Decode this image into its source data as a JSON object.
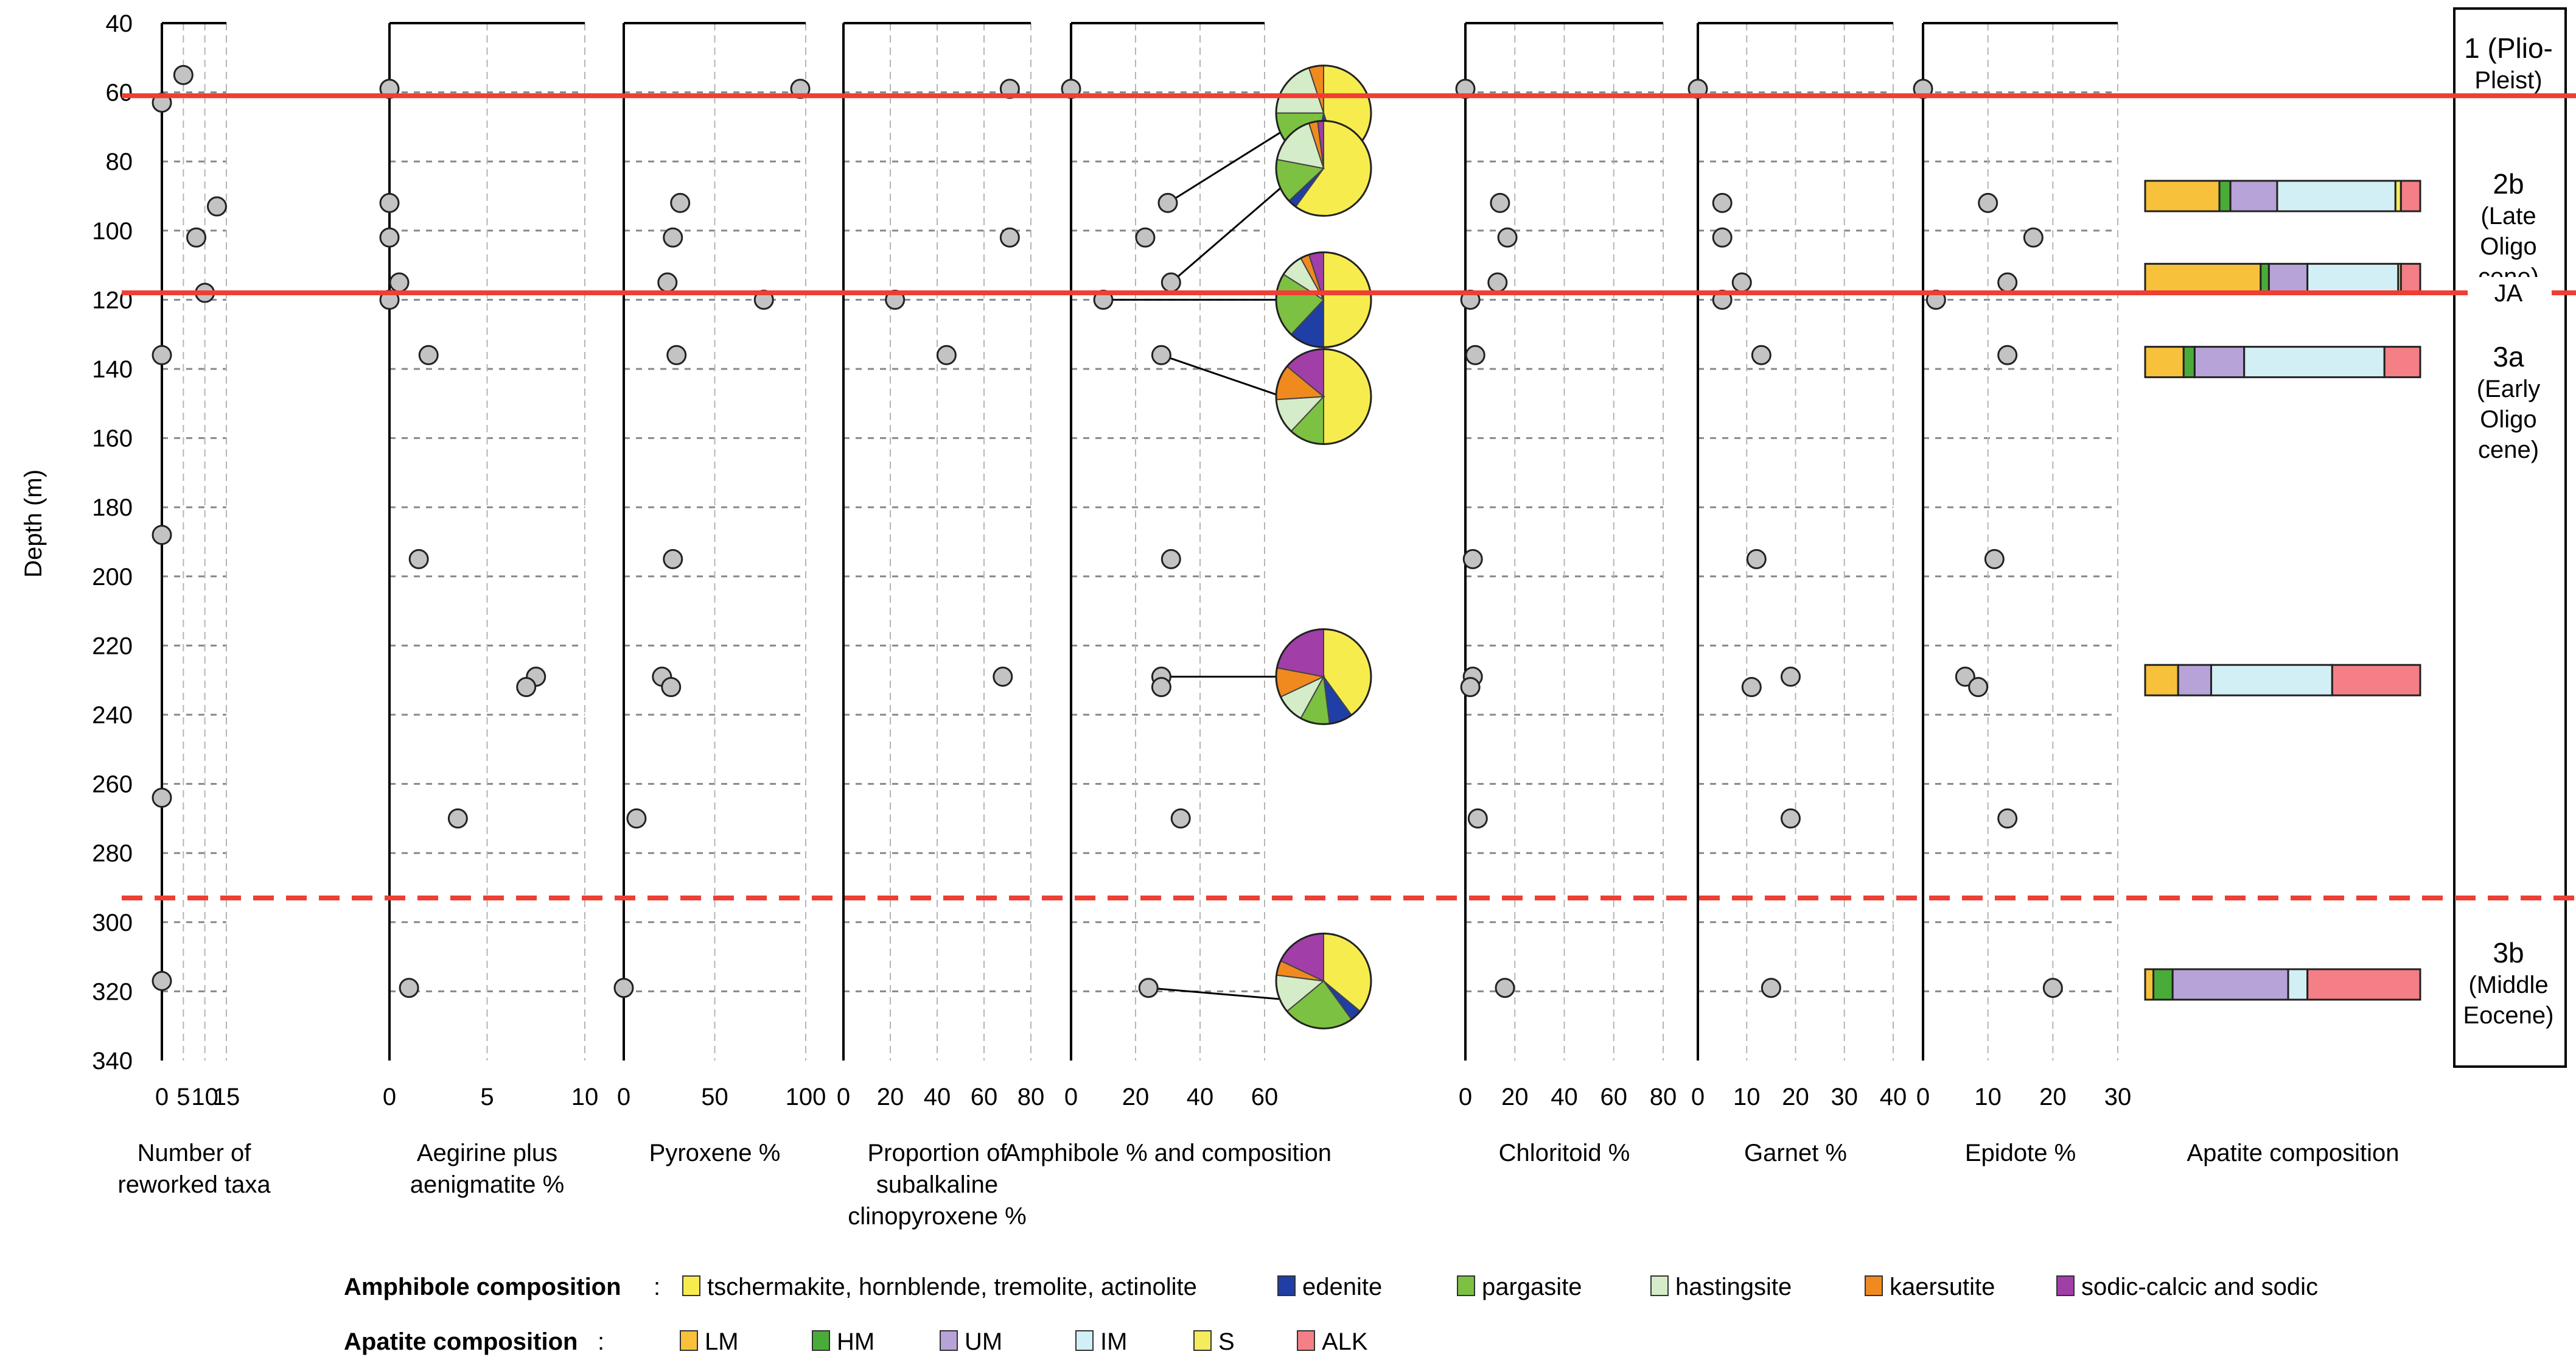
{
  "y_axis": {
    "label": "Depth (m)",
    "range": [
      40,
      340
    ],
    "ticks": [
      40,
      60,
      80,
      100,
      120,
      140,
      160,
      180,
      200,
      220,
      240,
      260,
      280,
      300,
      320,
      340
    ],
    "inverted": true
  },
  "colors": {
    "tschermakite": "#f7ec4e",
    "edenite": "#1f3fa6",
    "pargasite": "#7dc142",
    "hastingsite": "#d5ecc8",
    "kaersutite": "#f08a1e",
    "sodic": "#a13ea8",
    "LM": "#f8c13b",
    "HM": "#4aac38",
    "UM": "#b7a3d8",
    "IM": "#d2eff6",
    "S": "#f3ec5c",
    "ALK": "#f57f86",
    "boundary": "#ef3e33",
    "point_fill": "#c3c3c3",
    "grid": "#999999"
  },
  "chart_data": {
    "type": "scatter",
    "y_variable": "Depth (m)",
    "panels": [
      {
        "name": "reworked",
        "xlabel": [
          "Number of",
          "reworked taxa"
        ],
        "xlim": [
          0,
          15
        ],
        "xticks": [
          0,
          5,
          10,
          15
        ],
        "points": [
          {
            "x": 5,
            "y": 55
          },
          {
            "x": 0,
            "y": 63
          },
          {
            "x": 12.8,
            "y": 93
          },
          {
            "x": 8,
            "y": 102
          },
          {
            "x": 10,
            "y": 118
          },
          {
            "x": 0,
            "y": 136
          },
          {
            "x": 0,
            "y": 188
          },
          {
            "x": 0,
            "y": 264
          },
          {
            "x": 0,
            "y": 317
          }
        ]
      },
      {
        "name": "aegirine",
        "xlabel": [
          "Aegirine plus",
          "aenigmatite %"
        ],
        "xlim": [
          0,
          10
        ],
        "xticks": [
          0,
          5,
          10
        ],
        "points": [
          {
            "x": 0,
            "y": 59
          },
          {
            "x": 0,
            "y": 92
          },
          {
            "x": 0,
            "y": 102
          },
          {
            "x": 0.5,
            "y": 115
          },
          {
            "x": 0,
            "y": 120
          },
          {
            "x": 2,
            "y": 136
          },
          {
            "x": 1.5,
            "y": 195
          },
          {
            "x": 7.5,
            "y": 229
          },
          {
            "x": 7,
            "y": 232
          },
          {
            "x": 3.5,
            "y": 270
          },
          {
            "x": 1,
            "y": 319
          }
        ]
      },
      {
        "name": "pyroxene",
        "xlabel": [
          "Pyroxene %"
        ],
        "xlim": [
          0,
          100
        ],
        "xticks": [
          0,
          50,
          100
        ],
        "points": [
          {
            "x": 97,
            "y": 59
          },
          {
            "x": 31,
            "y": 92
          },
          {
            "x": 27,
            "y": 102
          },
          {
            "x": 24,
            "y": 115
          },
          {
            "x": 77,
            "y": 120
          },
          {
            "x": 29,
            "y": 136
          },
          {
            "x": 27,
            "y": 195
          },
          {
            "x": 21,
            "y": 229
          },
          {
            "x": 26,
            "y": 232
          },
          {
            "x": 7,
            "y": 270
          },
          {
            "x": 0,
            "y": 319
          }
        ]
      },
      {
        "name": "subalkaline",
        "xlabel": [
          "Proportion of",
          "subalkaline",
          "clinopyroxene %"
        ],
        "xlim": [
          0,
          80
        ],
        "xticks": [
          0,
          20,
          40,
          60,
          80
        ],
        "points": [
          {
            "x": 71,
            "y": 59
          },
          {
            "x": 71,
            "y": 102
          },
          {
            "x": 22,
            "y": 120
          },
          {
            "x": 44,
            "y": 136
          },
          {
            "x": 68,
            "y": 229
          }
        ]
      },
      {
        "name": "amphibole",
        "xlabel": [
          "Amphibole % and composition"
        ],
        "xlim": [
          0,
          60
        ],
        "xticks": [
          0,
          20,
          40,
          60
        ],
        "points": [
          {
            "x": 0,
            "y": 59
          },
          {
            "x": 30,
            "y": 92
          },
          {
            "x": 23,
            "y": 102
          },
          {
            "x": 31,
            "y": 115
          },
          {
            "x": 10,
            "y": 120
          },
          {
            "x": 28,
            "y": 136
          },
          {
            "x": 31,
            "y": 195
          },
          {
            "x": 28,
            "y": 229
          },
          {
            "x": 28,
            "y": 232
          },
          {
            "x": 34,
            "y": 270
          },
          {
            "x": 24,
            "y": 319
          }
        ]
      },
      {
        "name": "chloritoid",
        "xlabel": [
          "Chloritoid %"
        ],
        "xlim": [
          0,
          80
        ],
        "xticks": [
          0,
          20,
          40,
          60,
          80
        ],
        "points": [
          {
            "x": 0,
            "y": 59
          },
          {
            "x": 14,
            "y": 92
          },
          {
            "x": 17,
            "y": 102
          },
          {
            "x": 13,
            "y": 115
          },
          {
            "x": 2,
            "y": 120
          },
          {
            "x": 4,
            "y": 136
          },
          {
            "x": 3,
            "y": 195
          },
          {
            "x": 3,
            "y": 229
          },
          {
            "x": 2,
            "y": 232
          },
          {
            "x": 5,
            "y": 270
          },
          {
            "x": 16,
            "y": 319
          }
        ]
      },
      {
        "name": "garnet",
        "xlabel": [
          "Garnet %"
        ],
        "xlim": [
          0,
          40
        ],
        "xticks": [
          0,
          10,
          20,
          30,
          40
        ],
        "points": [
          {
            "x": 0,
            "y": 59
          },
          {
            "x": 5,
            "y": 92
          },
          {
            "x": 5,
            "y": 102
          },
          {
            "x": 9,
            "y": 115
          },
          {
            "x": 5,
            "y": 120
          },
          {
            "x": 13,
            "y": 136
          },
          {
            "x": 12,
            "y": 195
          },
          {
            "x": 19,
            "y": 229
          },
          {
            "x": 11,
            "y": 232
          },
          {
            "x": 19,
            "y": 270
          },
          {
            "x": 15,
            "y": 319
          }
        ]
      },
      {
        "name": "epidote",
        "xlabel": [
          "Epidote %"
        ],
        "xlim": [
          0,
          30
        ],
        "xticks": [
          0,
          10,
          20,
          30
        ],
        "points": [
          {
            "x": 0,
            "y": 59
          },
          {
            "x": 10,
            "y": 92
          },
          {
            "x": 17,
            "y": 102
          },
          {
            "x": 13,
            "y": 115
          },
          {
            "x": 2,
            "y": 120
          },
          {
            "x": 13,
            "y": 136
          },
          {
            "x": 11,
            "y": 195
          },
          {
            "x": 6.5,
            "y": 229
          },
          {
            "x": 8.5,
            "y": 232
          },
          {
            "x": 13,
            "y": 270
          },
          {
            "x": 20,
            "y": 319
          }
        ]
      }
    ],
    "amphibole_pies": [
      {
        "depth": 66,
        "point_depth": 92,
        "slices": {
          "tschermakite": 45,
          "edenite": 8,
          "pargasite": 22,
          "hastingsite": 20,
          "kaersutite": 5,
          "sodic": 0
        }
      },
      {
        "depth": 82,
        "point_depth": 115,
        "slices": {
          "tschermakite": 60,
          "edenite": 3,
          "pargasite": 15,
          "hastingsite": 17,
          "kaersutite": 3,
          "sodic": 2
        }
      },
      {
        "depth": 120,
        "point_depth": 120,
        "slices": {
          "tschermakite": 50,
          "edenite": 12,
          "pargasite": 22,
          "hastingsite": 8,
          "kaersutite": 3,
          "sodic": 5
        }
      },
      {
        "depth": 148,
        "point_depth": 136,
        "slices": {
          "tschermakite": 50,
          "edenite": 0,
          "pargasite": 12,
          "hastingsite": 12,
          "kaersutite": 12,
          "sodic": 14
        }
      },
      {
        "depth": 229,
        "point_depth": 229,
        "slices": {
          "tschermakite": 40,
          "edenite": 8,
          "pargasite": 10,
          "hastingsite": 10,
          "kaersutite": 10,
          "sodic": 22
        }
      },
      {
        "depth": 317,
        "point_depth": 319,
        "slices": {
          "tschermakite": 36,
          "edenite": 4,
          "pargasite": 24,
          "hastingsite": 13,
          "kaersutite": 5,
          "sodic": 18
        }
      }
    ],
    "apatite_bars": [
      {
        "depth": 90,
        "segments": {
          "LM": 27,
          "HM": 4,
          "UM": 17,
          "IM": 43,
          "S": 2,
          "ALK": 7
        }
      },
      {
        "depth": 114,
        "segments": {
          "LM": 42,
          "HM": 3,
          "UM": 14,
          "IM": 33,
          "S": 1,
          "ALK": 7
        }
      },
      {
        "depth": 138,
        "segments": {
          "LM": 14,
          "HM": 4,
          "UM": 18,
          "IM": 51,
          "S": 0,
          "ALK": 13
        }
      },
      {
        "depth": 230,
        "segments": {
          "LM": 12,
          "HM": 0,
          "UM": 12,
          "IM": 44,
          "S": 0,
          "ALK": 32
        }
      },
      {
        "depth": 318,
        "segments": {
          "LM": 3,
          "HM": 7,
          "UM": 42,
          "IM": 7,
          "S": 0,
          "ALK": 41
        }
      }
    ],
    "boundaries": [
      {
        "depth": 61,
        "style": "solid"
      },
      {
        "depth": 118,
        "style": "solid"
      },
      {
        "depth": 293,
        "style": "dashed"
      }
    ],
    "units": [
      {
        "depth": 52,
        "lines": [
          "1 (Plio-",
          "Pleist)"
        ]
      },
      {
        "depth": 100,
        "lines": [
          "2b",
          "(Late",
          "Oligo",
          "cene)"
        ]
      },
      {
        "depth": 118,
        "lines": [
          "JA"
        ]
      },
      {
        "depth": 150,
        "lines": [
          "3a",
          "(Early",
          "Oligo",
          "cene)"
        ]
      },
      {
        "depth": 318,
        "lines": [
          "3b",
          "(Middle",
          "Eocene)"
        ]
      }
    ],
    "apatite_title": "Apatite composition"
  },
  "legend": {
    "amphibole": {
      "title": "Amphibole composition",
      "items": [
        {
          "key": "tschermakite",
          "label": "tschermakite, hornblende, tremolite, actinolite"
        },
        {
          "key": "edenite",
          "label": "edenite"
        },
        {
          "key": "pargasite",
          "label": "pargasite"
        },
        {
          "key": "hastingsite",
          "label": "hastingsite"
        },
        {
          "key": "kaersutite",
          "label": "kaersutite"
        },
        {
          "key": "sodic",
          "label": "sodic-calcic and sodic"
        }
      ]
    },
    "apatite": {
      "title": "Apatite composition",
      "items": [
        {
          "key": "LM",
          "label": "LM"
        },
        {
          "key": "HM",
          "label": "HM"
        },
        {
          "key": "UM",
          "label": "UM"
        },
        {
          "key": "IM",
          "label": "IM"
        },
        {
          "key": "S",
          "label": "S"
        },
        {
          "key": "ALK",
          "label": "ALK"
        }
      ]
    }
  }
}
